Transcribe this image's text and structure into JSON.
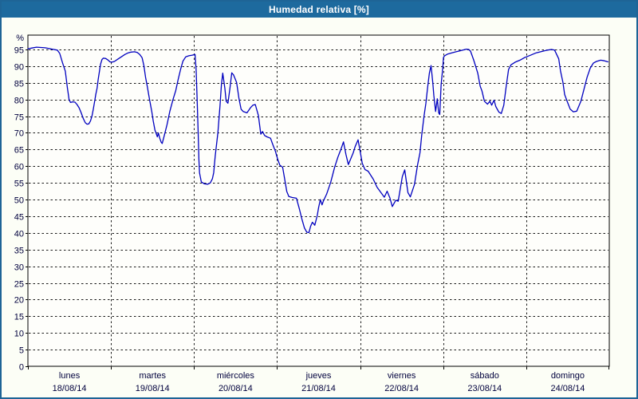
{
  "window": {
    "title_bar": {
      "title": "Humedad relativa [%]"
    }
  },
  "colors": {
    "titlebar_bg": "#1d6a9e",
    "titlebar_text": "#ffffff",
    "window_border": "#1e6496",
    "page_bg": "#fcfef6",
    "plot_bg": "#fefefb",
    "plot_border": "#000000",
    "grid": "#1a1a1a",
    "axis_label": "#00003d",
    "line": "#0000bf"
  },
  "chart_data": {
    "type": "line",
    "title": "Humedad relativa [%]",
    "ylabel": "%",
    "grid": true,
    "legend_position": "none",
    "y_axis": {
      "unit": "%",
      "min": 0,
      "max": 100,
      "tick_step": 5,
      "ticks": [
        0,
        5,
        10,
        15,
        20,
        25,
        30,
        35,
        40,
        45,
        50,
        55,
        60,
        65,
        70,
        75,
        80,
        85,
        90,
        95
      ]
    },
    "x_axis": {
      "range_hours": [
        0,
        168
      ],
      "hours_per_day": 24,
      "days": [
        {
          "name": "lunes",
          "date": "18/08/14"
        },
        {
          "name": "martes",
          "date": "19/08/14"
        },
        {
          "name": "miércoles",
          "date": "20/08/14"
        },
        {
          "name": "jueves",
          "date": "21/08/14"
        },
        {
          "name": "viernes",
          "date": "22/08/14"
        },
        {
          "name": "sábado",
          "date": "23/08/14"
        },
        {
          "name": "domingo",
          "date": "24/08/14"
        }
      ]
    },
    "series": [
      {
        "name": "Humedad relativa [%]",
        "color": "#0000bf",
        "points": [
          [
            0,
            95.2
          ],
          [
            1,
            95.4
          ],
          [
            2.5,
            95.7
          ],
          [
            5,
            95.5
          ],
          [
            7,
            95.1
          ],
          [
            8.5,
            94.8
          ],
          [
            9.2,
            93.8
          ],
          [
            10,
            91
          ],
          [
            10.8,
            88.5
          ],
          [
            11.4,
            83.5
          ],
          [
            11.9,
            80
          ],
          [
            12.3,
            79.1
          ],
          [
            13,
            79.3
          ],
          [
            13.6,
            79.2
          ],
          [
            14.2,
            78.5
          ],
          [
            14.8,
            77.5
          ],
          [
            15.4,
            76
          ],
          [
            16,
            74.3
          ],
          [
            16.6,
            73
          ],
          [
            17.1,
            72.6
          ],
          [
            17.6,
            72.7
          ],
          [
            18.1,
            73.6
          ],
          [
            18.5,
            75
          ],
          [
            18.9,
            77.1
          ],
          [
            19.3,
            79.5
          ],
          [
            19.6,
            81.5
          ],
          [
            20,
            83.5
          ],
          [
            20.3,
            86
          ],
          [
            20.7,
            88.6
          ],
          [
            21,
            90.6
          ],
          [
            21.4,
            92
          ],
          [
            21.8,
            92.4
          ],
          [
            22.5,
            92.3
          ],
          [
            23.2,
            91.8
          ],
          [
            23.7,
            91.3
          ],
          [
            24.3,
            91.2
          ],
          [
            25,
            91.4
          ],
          [
            26,
            92.1
          ],
          [
            27,
            92.8
          ],
          [
            28,
            93.5
          ],
          [
            29,
            94
          ],
          [
            29.8,
            94.2
          ],
          [
            30.8,
            94.3
          ],
          [
            31.6,
            94.1
          ],
          [
            32.3,
            93.5
          ],
          [
            33,
            92.5
          ],
          [
            33.5,
            90.2
          ],
          [
            34,
            86.7
          ],
          [
            34.5,
            83.9
          ],
          [
            34.9,
            81.5
          ],
          [
            35.3,
            79.1
          ],
          [
            35.8,
            76.4
          ],
          [
            36.2,
            73.6
          ],
          [
            36.7,
            70.8
          ],
          [
            37,
            70
          ],
          [
            37.4,
            68.8
          ],
          [
            37.7,
            70
          ],
          [
            38.1,
            68.4
          ],
          [
            38.5,
            67.2
          ],
          [
            38.8,
            66.8
          ],
          [
            39.4,
            69.2
          ],
          [
            40.2,
            72.4
          ],
          [
            41,
            76.4
          ],
          [
            42,
            80.3
          ],
          [
            42.7,
            82.6
          ],
          [
            43.4,
            85.9
          ],
          [
            44.1,
            89
          ],
          [
            44.8,
            91.5
          ],
          [
            45.6,
            92.8
          ],
          [
            46.5,
            93.1
          ],
          [
            47.5,
            93.3
          ],
          [
            48.3,
            93.5
          ],
          [
            48.6,
            89
          ],
          [
            48.9,
            80
          ],
          [
            49.2,
            70
          ],
          [
            49.4,
            62
          ],
          [
            49.6,
            58
          ],
          [
            50.1,
            55.3
          ],
          [
            51,
            54.7
          ],
          [
            52,
            54.6
          ],
          [
            52.7,
            55
          ],
          [
            53.3,
            56.2
          ],
          [
            53.7,
            58.1
          ],
          [
            54.1,
            62.9
          ],
          [
            54.9,
            70
          ],
          [
            55.5,
            77.9
          ],
          [
            55.9,
            84.3
          ],
          [
            56.3,
            87.9
          ],
          [
            56.9,
            83.5
          ],
          [
            57.3,
            79.5
          ],
          [
            57.8,
            78.9
          ],
          [
            58.4,
            83.5
          ],
          [
            58.9,
            88
          ],
          [
            59.4,
            87.4
          ],
          [
            60.3,
            85.1
          ],
          [
            61,
            80.2
          ],
          [
            61.6,
            77.1
          ],
          [
            62.2,
            76.4
          ],
          [
            63.3,
            76
          ],
          [
            64.3,
            77.5
          ],
          [
            65,
            78.3
          ],
          [
            65.7,
            78.5
          ],
          [
            66.6,
            75.2
          ],
          [
            67.3,
            69.6
          ],
          [
            67.8,
            70.4
          ],
          [
            68.4,
            69.2
          ],
          [
            69.1,
            68.8
          ],
          [
            70.1,
            68.4
          ],
          [
            70.8,
            66.4
          ],
          [
            71.5,
            64.5
          ],
          [
            72.2,
            62
          ],
          [
            72.8,
            60.3
          ],
          [
            73.6,
            59.7
          ],
          [
            74.2,
            56.1
          ],
          [
            74.8,
            52.4
          ],
          [
            75.4,
            50.9
          ],
          [
            76.4,
            50.6
          ],
          [
            77.6,
            50.4
          ],
          [
            78.5,
            47
          ],
          [
            79.2,
            44
          ],
          [
            79.9,
            41.5
          ],
          [
            80.6,
            40.2
          ],
          [
            81.2,
            40.1
          ],
          [
            81.7,
            42
          ],
          [
            82.2,
            43.2
          ],
          [
            82.9,
            42.3
          ],
          [
            83.6,
            45.2
          ],
          [
            84,
            47.6
          ],
          [
            84.5,
            50
          ],
          [
            85,
            48.4
          ],
          [
            85.4,
            49.6
          ],
          [
            86.3,
            51.6
          ],
          [
            87.5,
            55.2
          ],
          [
            88.6,
            59.6
          ],
          [
            89.6,
            62.8
          ],
          [
            90.5,
            65.2
          ],
          [
            91.2,
            67.3
          ],
          [
            91.9,
            63.5
          ],
          [
            92.6,
            60.5
          ],
          [
            94,
            64
          ],
          [
            94.6,
            66
          ],
          [
            95.4,
            67.9
          ],
          [
            96,
            64.5
          ],
          [
            96.6,
            60.9
          ],
          [
            97.4,
            59
          ],
          [
            98.3,
            58.5
          ],
          [
            99.8,
            56.1
          ],
          [
            100.9,
            53.7
          ],
          [
            102.1,
            52
          ],
          [
            103,
            50.7
          ],
          [
            103.8,
            52.5
          ],
          [
            104.6,
            50.5
          ],
          [
            105.3,
            47.9
          ],
          [
            106.3,
            49.8
          ],
          [
            107,
            49.5
          ],
          [
            108.2,
            56.9
          ],
          [
            108.9,
            58.9
          ],
          [
            109.8,
            52.1
          ],
          [
            110.5,
            50.8
          ],
          [
            111.7,
            54.5
          ],
          [
            112.6,
            60.4
          ],
          [
            113.3,
            64
          ],
          [
            113.8,
            69.3
          ],
          [
            114.5,
            75.2
          ],
          [
            115,
            78.8
          ],
          [
            115.5,
            83.6
          ],
          [
            116,
            87.9
          ],
          [
            116.5,
            90.2
          ],
          [
            117,
            85
          ],
          [
            117.3,
            81.2
          ],
          [
            117.8,
            76.4
          ],
          [
            118.3,
            80.2
          ],
          [
            118.7,
            76
          ],
          [
            119,
            75.5
          ],
          [
            119.4,
            84.3
          ],
          [
            119.9,
            89.8
          ],
          [
            120.1,
            92.6
          ],
          [
            120.4,
            93.1
          ],
          [
            121.2,
            93.6
          ],
          [
            122.5,
            94
          ],
          [
            123.7,
            94.3
          ],
          [
            124.8,
            94.6
          ],
          [
            126,
            94.9
          ],
          [
            126.7,
            95.1
          ],
          [
            127.4,
            95
          ],
          [
            127.9,
            94.5
          ],
          [
            128.8,
            91.9
          ],
          [
            130,
            87.9
          ],
          [
            130.7,
            84
          ],
          [
            131.2,
            82.6
          ],
          [
            131.9,
            79.5
          ],
          [
            132.8,
            78.6
          ],
          [
            133.5,
            79.5
          ],
          [
            134,
            78.3
          ],
          [
            134.7,
            79.8
          ],
          [
            135.2,
            77.9
          ],
          [
            136.1,
            76.2
          ],
          [
            136.8,
            75.8
          ],
          [
            137.5,
            78.3
          ],
          [
            138.2,
            83.9
          ],
          [
            138.9,
            89
          ],
          [
            139.6,
            90.4
          ],
          [
            140.8,
            91.2
          ],
          [
            142.2,
            91.8
          ],
          [
            143.4,
            92.5
          ],
          [
            144.1,
            92.8
          ],
          [
            145.5,
            93.4
          ],
          [
            146.9,
            94
          ],
          [
            148.5,
            94.4
          ],
          [
            150.1,
            94.8
          ],
          [
            151.3,
            95
          ],
          [
            152.2,
            94.8
          ],
          [
            153.4,
            92.2
          ],
          [
            153.9,
            88.6
          ],
          [
            154.6,
            85.1
          ],
          [
            155.1,
            81.5
          ],
          [
            156,
            79
          ],
          [
            156.7,
            77.1
          ],
          [
            157.6,
            76.3
          ],
          [
            158.6,
            76.5
          ],
          [
            159.8,
            79.5
          ],
          [
            160.7,
            83.1
          ],
          [
            161.6,
            86.7
          ],
          [
            162.5,
            89.4
          ],
          [
            163.4,
            90.9
          ],
          [
            164.3,
            91.4
          ],
          [
            165.5,
            91.8
          ],
          [
            166.6,
            91.6
          ],
          [
            167.6,
            91.3
          ]
        ]
      }
    ]
  }
}
